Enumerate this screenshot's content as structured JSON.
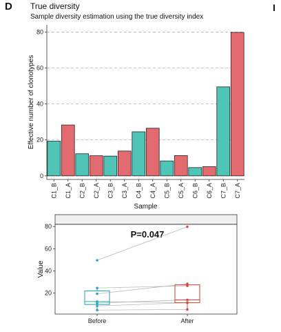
{
  "panel_letter": "D",
  "next_panel_letter": "I",
  "chart_data": [
    {
      "type": "bar",
      "title": "True diversity",
      "subtitle": "Sample diversity estimation using the true diversity index",
      "xlabel": "Sample",
      "ylabel": "Effective number of clonotypes",
      "categories": [
        "C1_B",
        "C1_A",
        "C2_B",
        "C2_A",
        "C3_B",
        "C3_A",
        "C4_B",
        "C4_A",
        "C5_B",
        "C5_A",
        "C6_B",
        "C6_A",
        "C7_B",
        "C7_A"
      ],
      "values": [
        19.3,
        28.3,
        12.3,
        11.2,
        11.0,
        13.8,
        24.5,
        26.5,
        8.3,
        11.3,
        4.6,
        5.1,
        49.5,
        79.8
      ],
      "groups": [
        "B",
        "A",
        "B",
        "A",
        "B",
        "A",
        "B",
        "A",
        "B",
        "A",
        "B",
        "A",
        "B",
        "A"
      ],
      "ylim": [
        -2,
        84
      ],
      "yticks": [
        0,
        20,
        40,
        60,
        80
      ],
      "grid": "horizontal dashed",
      "colors": {
        "B": "#4fc4b7",
        "A": "#e36a6f"
      }
    },
    {
      "type": "box",
      "annotation": "P=0.047",
      "ylabel": "Value",
      "categories": [
        "Before",
        "After"
      ],
      "ylim": [
        1,
        82
      ],
      "yticks": [
        20,
        40,
        60,
        80
      ],
      "before": [
        19.3,
        12.3,
        11.0,
        24.5,
        8.3,
        4.6,
        49.5
      ],
      "after": [
        28.3,
        11.2,
        13.8,
        26.5,
        11.3,
        5.1,
        79.8
      ],
      "colors": {
        "Before": "#2aa9b5",
        "After": "#d94a41"
      }
    }
  ]
}
